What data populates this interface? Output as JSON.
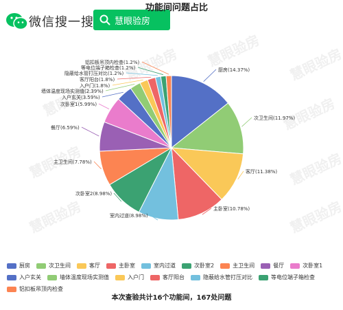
{
  "header": {
    "brand": "微信搜一搜",
    "search_value": "慧眼验房"
  },
  "watermark": "慧眼验房",
  "chart_data": {
    "type": "pie",
    "title": "功能间问题占比",
    "series": [
      {
        "name": "厨房",
        "value": 14.37,
        "label": "厨房(14.37%)",
        "color": "#5470c6"
      },
      {
        "name": "次卫生间",
        "value": 11.97,
        "label": "次卫生间(11.97%)",
        "color": "#91cc75"
      },
      {
        "name": "客厅",
        "value": 11.38,
        "label": "客厅(11.38%)",
        "color": "#fac858"
      },
      {
        "name": "主卧室",
        "value": 10.78,
        "label": "主卧室(10.78%)",
        "color": "#ee6666"
      },
      {
        "name": "室内过道",
        "value": 8.98,
        "label": "室内过道(8.98%)",
        "color": "#73c0de"
      },
      {
        "name": "次卧室2",
        "value": 8.98,
        "label": "次卧室2(8.98%)",
        "color": "#3ba272"
      },
      {
        "name": "主卫生间",
        "value": 7.78,
        "label": "主卫生间(7.78%)",
        "color": "#fc8452"
      },
      {
        "name": "餐厅",
        "value": 6.59,
        "label": "餐厅(6.59%)",
        "color": "#9a60b4"
      },
      {
        "name": "次卧室1",
        "value": 5.99,
        "label": "次卧室1(5.99%)",
        "color": "#ea7ccc"
      },
      {
        "name": "入户玄关",
        "value": 3.59,
        "label": "入户玄关(3.59%)",
        "color": "#5470c6"
      },
      {
        "name": "墙体温度现场实测值",
        "value": 2.39,
        "label": "墙体温度现场实测值(2.39%)",
        "color": "#91cc75"
      },
      {
        "name": "入户门",
        "value": 1.8,
        "label": "入户门(1.8%)",
        "color": "#fac858"
      },
      {
        "name": "客厅阳台",
        "value": 1.8,
        "label": "客厅阳台(1.8%)",
        "color": "#ee6666"
      },
      {
        "name": "隐蔽给水管打压对比",
        "value": 1.2,
        "label": "隐蔽给水管打压对比(1.2%)",
        "color": "#73c0de"
      },
      {
        "name": "等电位端子箱检查",
        "value": 1.2,
        "label": "等电位端子箱检查(1.2%)",
        "color": "#3ba272"
      },
      {
        "name": "铝扣板吊顶内检查",
        "value": 1.2,
        "label": "铝扣板吊顶内检查(1.2%)",
        "color": "#fc8452"
      }
    ]
  },
  "footer": "本次查验共计16个功能间，167处问题"
}
